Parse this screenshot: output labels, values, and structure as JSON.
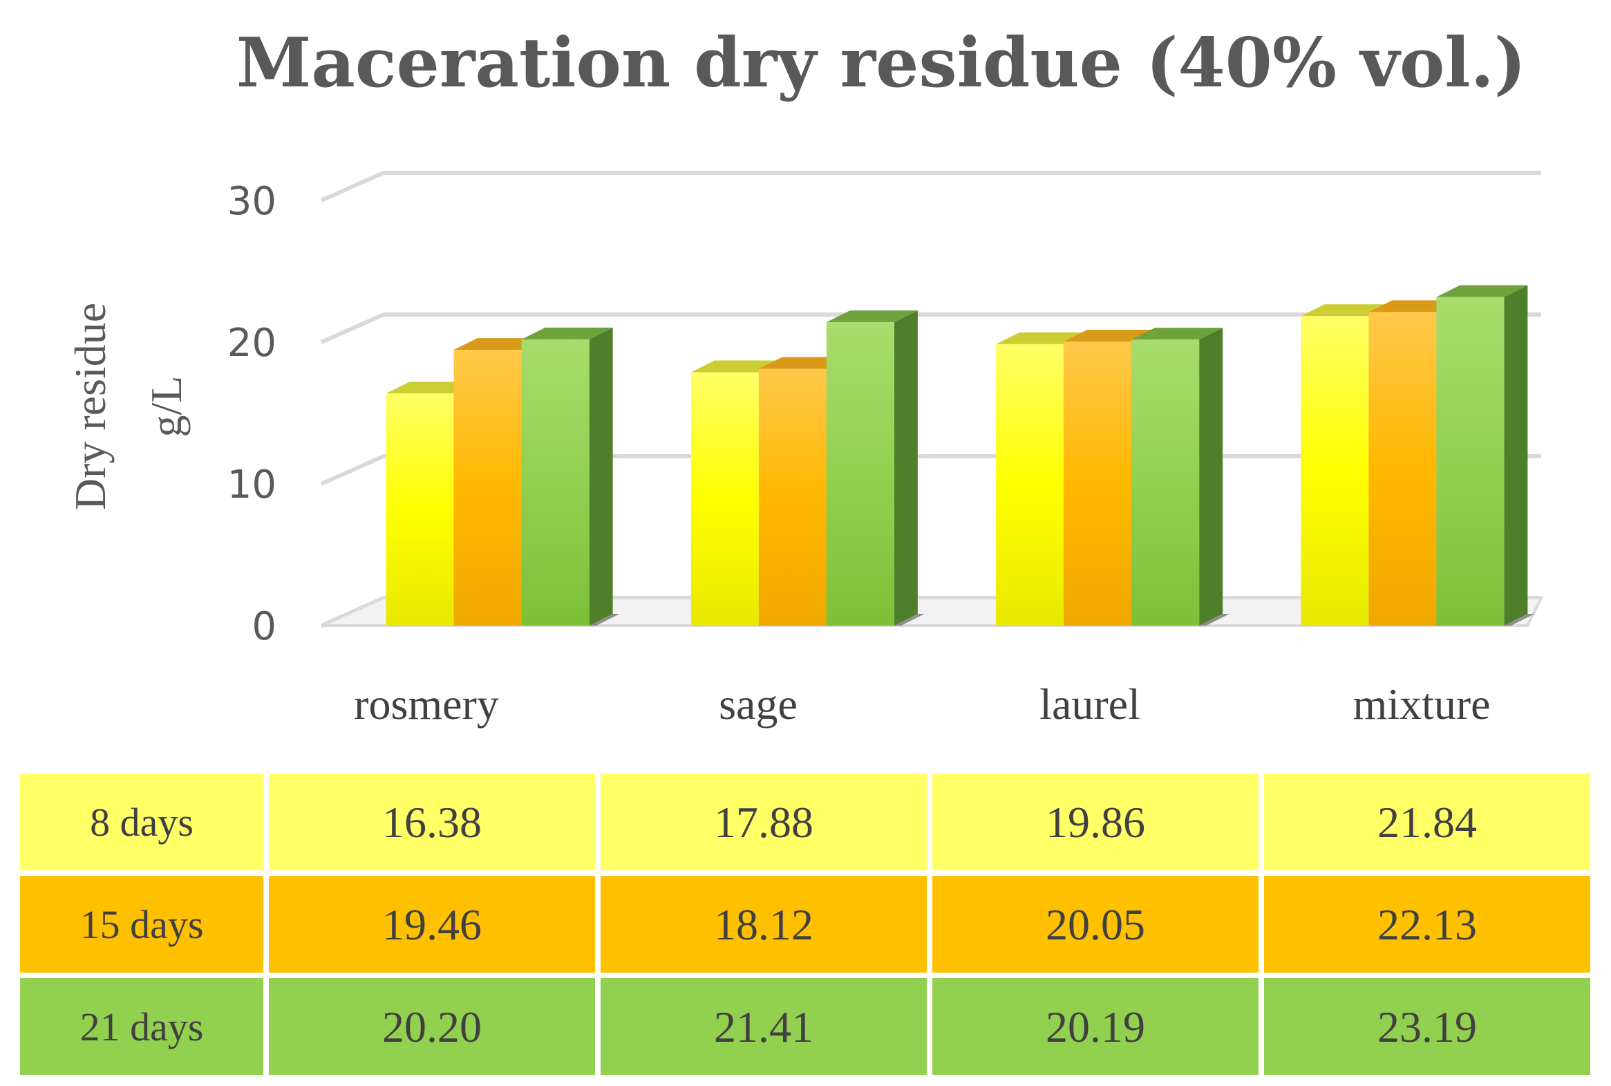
{
  "chart_data": {
    "type": "bar",
    "title": "Maceration dry residue (40% vol.)",
    "ylabel_line1": "Dry residue",
    "ylabel_line2": "g/L",
    "xlabel": "",
    "ylim": [
      0,
      30
    ],
    "yticks": [
      0,
      10,
      20,
      30
    ],
    "ytick_labels": [
      "0",
      "10",
      "20",
      "30"
    ],
    "grid": true,
    "legend": "data-table below chart",
    "categories": [
      "rosmery",
      "sage",
      "laurel",
      "mixture"
    ],
    "series": [
      {
        "name": "8 days",
        "values": [
          16.38,
          17.88,
          19.86,
          21.84
        ],
        "value_labels": [
          "16.38",
          "17.88",
          "19.86",
          "21.84"
        ],
        "color": "#ffff00",
        "cell_color": "#ffff66"
      },
      {
        "name": "15 days",
        "values": [
          19.46,
          18.12,
          20.05,
          22.13
        ],
        "value_labels": [
          "19.46",
          "18.12",
          "20.05",
          "22.13"
        ],
        "color": "#ffc000",
        "cell_color": "#ffc000"
      },
      {
        "name": "21 days",
        "values": [
          20.2,
          21.41,
          20.19,
          23.19
        ],
        "value_labels": [
          "20.20",
          "21.41",
          "20.19",
          "23.19"
        ],
        "color": "#92d050",
        "cell_color": "#92d050"
      }
    ]
  }
}
